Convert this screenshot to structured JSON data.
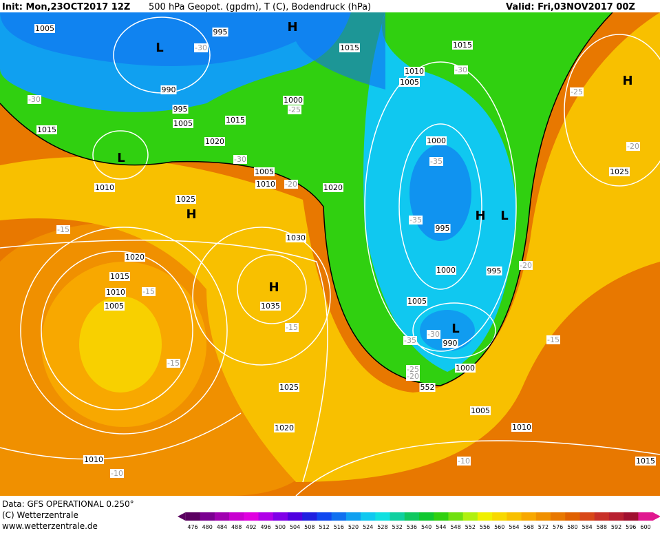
{
  "header": {
    "init": "Init: Mon,23OCT2017 12Z",
    "title": "500 hPa Geopot. (gpdm), T (C), Bodendruck (hPa)",
    "valid": "Valid: Fri,03NOV2017 00Z"
  },
  "footer": {
    "data": "Data: GFS OPERATIONAL 0.250°",
    "copyright": "(C) Wetterzentrale",
    "url": "www.wetterzentrale.de"
  },
  "colorbar": {
    "ticks": [
      476,
      480,
      484,
      488,
      492,
      496,
      500,
      504,
      508,
      512,
      516,
      520,
      524,
      528,
      532,
      536,
      540,
      544,
      548,
      552,
      556,
      560,
      564,
      568,
      572,
      576,
      580,
      584,
      588,
      592,
      596,
      600
    ],
    "colors": [
      "#5a0060",
      "#7a0090",
      "#a000b0",
      "#c800d0",
      "#e000e0",
      "#b000e8",
      "#8000e8",
      "#5000e0",
      "#2020e0",
      "#1048f0",
      "#1070f0",
      "#10a0f0",
      "#10c8f0",
      "#10e0e0",
      "#10d0a0",
      "#10c860",
      "#10c830",
      "#30d010",
      "#70e010",
      "#b0f010",
      "#f0f000",
      "#f8d800",
      "#f8c000",
      "#f8a800",
      "#f09000",
      "#e87800",
      "#e06000",
      "#d84818",
      "#c83028",
      "#b82030",
      "#a01030",
      "#e01890"
    ]
  },
  "map": {
    "pressure_labels": [
      "1005",
      "995",
      "1015",
      "1015",
      "1010",
      "1005",
      "990",
      "995",
      "1005",
      "1000",
      "1015",
      "1015",
      "1020",
      "1000",
      "1005",
      "1010",
      "1010",
      "1020",
      "1025",
      "995",
      "1030",
      "1020",
      "1000",
      "995",
      "1015",
      "1010",
      "1005",
      "1035",
      "1005",
      "990",
      "1000",
      "1025",
      "1005",
      "1020",
      "1010",
      "1010",
      "1015",
      "1025"
    ],
    "temperature_labels": [
      "-30",
      "-30",
      "-30",
      "-25",
      "-25",
      "-30",
      "-20",
      "-20",
      "-35",
      "-35",
      "-15",
      "-15",
      "-20",
      "-15",
      "-35",
      "-30",
      "-15",
      "-15",
      "-25",
      "-20",
      "-10",
      "-10"
    ],
    "height_labels": [
      "552"
    ],
    "centers": [
      "H",
      "L",
      "H",
      "L",
      "H",
      "H",
      "L",
      "H",
      "L"
    ]
  }
}
